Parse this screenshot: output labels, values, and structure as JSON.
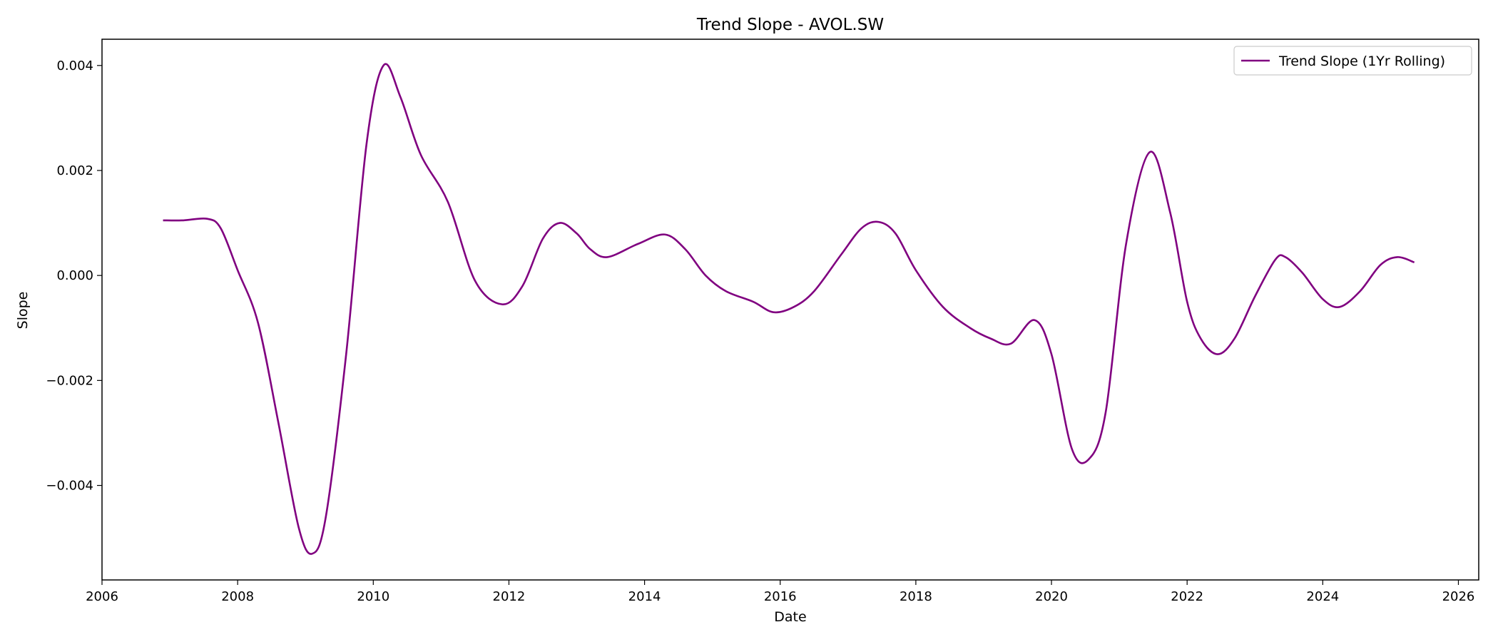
{
  "chart_data": {
    "type": "line",
    "title": "Trend Slope - AVOL.SW",
    "xlabel": "Date",
    "ylabel": "Slope",
    "xlim": [
      2006.0,
      2026.3
    ],
    "ylim": [
      -0.0058,
      0.0045
    ],
    "x_ticks": [
      2006,
      2008,
      2010,
      2012,
      2014,
      2016,
      2018,
      2020,
      2022,
      2024,
      2026
    ],
    "x_tick_labels": [
      "2006",
      "2008",
      "2010",
      "2012",
      "2014",
      "2016",
      "2018",
      "2020",
      "2022",
      "2024",
      "2026"
    ],
    "y_ticks": [
      -0.004,
      -0.002,
      0.0,
      0.002,
      0.004
    ],
    "y_tick_labels": [
      "−0.004",
      "−0.002",
      "0.000",
      "0.002",
      "0.004"
    ],
    "grid": false,
    "legend_position": "top-right",
    "series": [
      {
        "name": "Trend Slope (1Yr Rolling)",
        "color": "#800080",
        "x": [
          2006.9,
          2007.2,
          2007.55,
          2007.75,
          2008.0,
          2008.3,
          2008.6,
          2008.9,
          2009.1,
          2009.3,
          2009.6,
          2009.9,
          2010.15,
          2010.4,
          2010.7,
          2011.1,
          2011.5,
          2011.9,
          2012.2,
          2012.5,
          2012.75,
          2013.0,
          2013.2,
          2013.45,
          2013.9,
          2014.3,
          2014.6,
          2014.9,
          2015.2,
          2015.6,
          2015.9,
          2016.2,
          2016.5,
          2016.9,
          2017.2,
          2017.45,
          2017.7,
          2018.0,
          2018.4,
          2018.8,
          2019.1,
          2019.4,
          2019.75,
          2020.0,
          2020.3,
          2020.55,
          2020.8,
          2021.1,
          2021.45,
          2021.75,
          2022.0,
          2022.2,
          2022.45,
          2022.7,
          2023.0,
          2023.3,
          2023.45,
          2023.7,
          2024.0,
          2024.25,
          2024.55,
          2024.85,
          2025.1,
          2025.35
        ],
        "y": [
          0.00105,
          0.00105,
          0.00108,
          0.0009,
          0.0001,
          -0.0009,
          -0.0028,
          -0.0048,
          -0.0053,
          -0.0046,
          -0.0015,
          0.0025,
          0.004,
          0.0034,
          0.0023,
          0.0014,
          -0.0001,
          -0.00055,
          -0.0002,
          0.0007,
          0.001,
          0.0008,
          0.0005,
          0.00035,
          0.0006,
          0.00078,
          0.0005,
          0.0,
          -0.0003,
          -0.0005,
          -0.0007,
          -0.0006,
          -0.0003,
          0.0004,
          0.0009,
          0.00102,
          0.0008,
          0.0001,
          -0.0006,
          -0.001,
          -0.0012,
          -0.0013,
          -0.00085,
          -0.0015,
          -0.0033,
          -0.0035,
          -0.0026,
          0.0006,
          0.00235,
          0.0012,
          -0.0005,
          -0.0012,
          -0.0015,
          -0.0012,
          -0.0004,
          0.0003,
          0.00035,
          5e-05,
          -0.00045,
          -0.0006,
          -0.0003,
          0.0002,
          0.00035,
          0.00025
        ]
      }
    ]
  }
}
